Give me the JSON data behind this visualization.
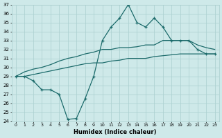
{
  "xlabel": "Humidex (Indice chaleur)",
  "xlim": [
    -0.5,
    23.5
  ],
  "ylim": [
    24,
    37
  ],
  "yticks": [
    24,
    25,
    26,
    27,
    28,
    29,
    30,
    31,
    32,
    33,
    34,
    35,
    36,
    37
  ],
  "xticks": [
    0,
    1,
    2,
    3,
    4,
    5,
    6,
    7,
    8,
    9,
    10,
    11,
    12,
    13,
    14,
    15,
    16,
    17,
    18,
    19,
    20,
    21,
    22,
    23
  ],
  "bg_color": "#cee9e9",
  "grid_color": "#aacfcf",
  "line_color": "#1c6b6b",
  "main_line": [
    29,
    29,
    28.5,
    27.5,
    27.5,
    27,
    24.2,
    24.3,
    26.5,
    29,
    33,
    34.5,
    35.5,
    37,
    35,
    34.5,
    35.5,
    34.5,
    33,
    33,
    33,
    32,
    31.5,
    31.5
  ],
  "upper_line": [
    29,
    29.5,
    29.8,
    30.0,
    30.3,
    30.7,
    31.0,
    31.2,
    31.5,
    31.7,
    32.0,
    32.0,
    32.2,
    32.2,
    32.3,
    32.5,
    32.5,
    33.0,
    33.0,
    33.0,
    33.0,
    32.5,
    32.2,
    32.0
  ],
  "lower_line": [
    29,
    29.0,
    29.2,
    29.4,
    29.6,
    29.8,
    30.0,
    30.2,
    30.4,
    30.5,
    30.5,
    30.7,
    30.8,
    31.0,
    31.0,
    31.0,
    31.2,
    31.3,
    31.4,
    31.5,
    31.5,
    31.5,
    31.5,
    31.5
  ]
}
